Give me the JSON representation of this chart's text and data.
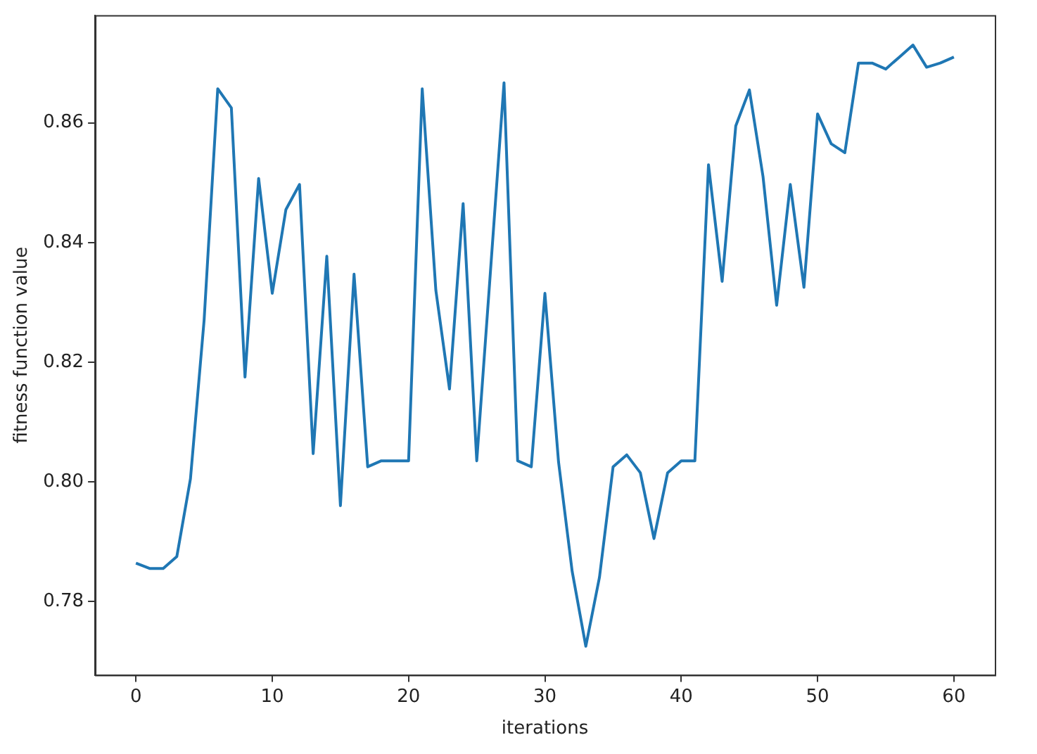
{
  "chart_data": {
    "type": "line",
    "xlabel": "iterations",
    "ylabel": "fitness function value",
    "x": [
      0,
      1,
      2,
      3,
      4,
      5,
      6,
      7,
      8,
      9,
      10,
      11,
      12,
      13,
      14,
      15,
      16,
      17,
      18,
      19,
      20,
      21,
      22,
      23,
      24,
      25,
      26,
      27,
      28,
      29,
      30,
      31,
      32,
      33,
      34,
      35,
      36,
      37,
      38,
      39,
      40,
      41,
      42,
      43,
      44,
      45,
      46,
      47,
      48,
      49,
      50,
      51,
      52,
      53,
      54,
      55,
      56,
      57,
      58,
      59,
      60
    ],
    "series": [
      {
        "color": "#1f77b4",
        "values": [
          0.7864,
          0.7855,
          0.7855,
          0.7875,
          0.8005,
          0.827,
          0.8657,
          0.8625,
          0.8175,
          0.8507,
          0.8315,
          0.8455,
          0.8497,
          0.8047,
          0.8377,
          0.796,
          0.8347,
          0.8025,
          0.8035,
          0.8035,
          0.8035,
          0.8657,
          0.832,
          0.8155,
          0.8465,
          0.8035,
          0.835,
          0.8667,
          0.8035,
          0.8025,
          0.8315,
          0.8033,
          0.785,
          0.7725,
          0.784,
          0.8025,
          0.8045,
          0.8015,
          0.7905,
          0.8015,
          0.8035,
          0.8035,
          0.853,
          0.8335,
          0.8595,
          0.8655,
          0.851,
          0.8295,
          0.8497,
          0.8325,
          0.8615,
          0.8565,
          0.855,
          0.87,
          0.87,
          0.869,
          0.871,
          0.873,
          0.8693,
          0.87,
          0.871
        ]
      }
    ],
    "xlim": [
      -3,
      63
    ],
    "ylim": [
      0.7677,
      0.878
    ],
    "xticks": [
      0,
      10,
      20,
      30,
      40,
      50,
      60
    ],
    "yticks": [
      0.78,
      {
        "value": 0.8,
        "label": "0.80"
      },
      0.82,
      0.84,
      0.86
    ],
    "grid": false,
    "legend": false,
    "marker": "none",
    "line_style": "solid"
  }
}
